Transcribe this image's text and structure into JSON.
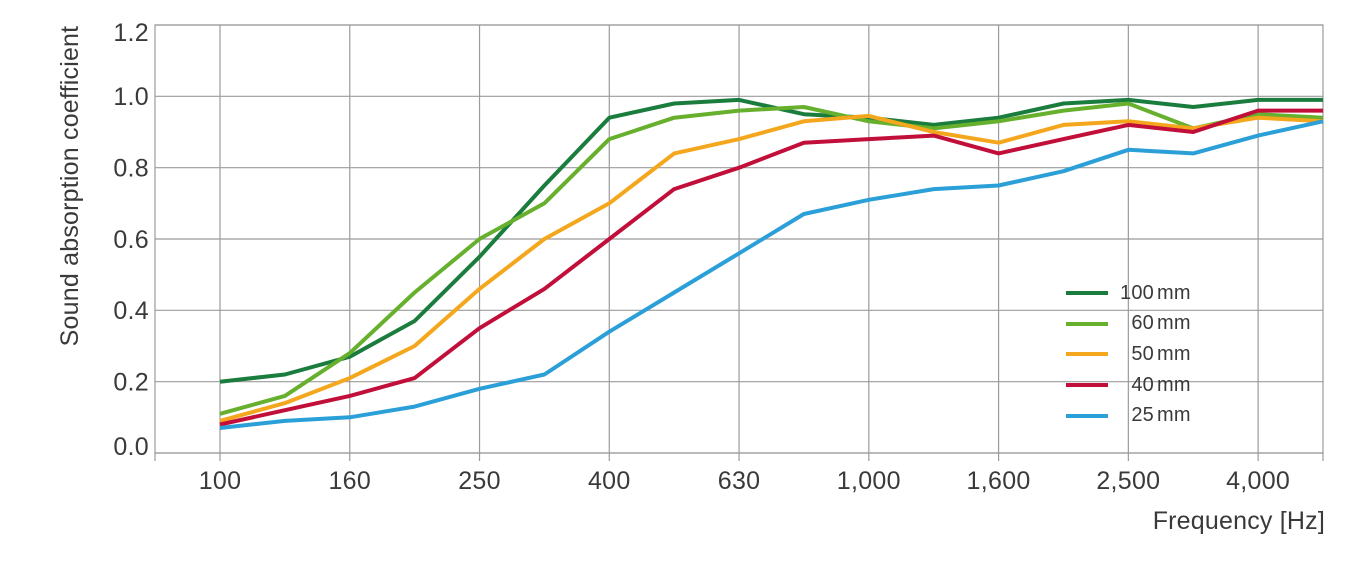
{
  "page": {
    "background": "#ffffff"
  },
  "style": {
    "grid_color": "#9b9b9b",
    "text_color": "#3a3a3a",
    "line_width": 4,
    "grid_width": 1.2
  },
  "chart_data": {
    "type": "line",
    "title": "",
    "xlabel": "Frequency [Hz]",
    "ylabel": "Sound absorption coefficient",
    "x_scale": "logarithmic, 1/3-octave bands",
    "grid": true,
    "legend_position": "inside-right",
    "ylim": [
      0,
      1.2
    ],
    "y_ticks": [
      "0.0",
      "0.2",
      "0.4",
      "0.6",
      "0.8",
      "1.0",
      "1.2"
    ],
    "frequencies": [
      100,
      125,
      160,
      200,
      250,
      315,
      400,
      500,
      630,
      800,
      1000,
      1250,
      1600,
      2000,
      2500,
      3150,
      4000,
      5000
    ],
    "x_ticks": [
      {
        "label": "100",
        "index": 0
      },
      {
        "label": "160",
        "index": 2
      },
      {
        "label": "250",
        "index": 4
      },
      {
        "label": "400",
        "index": 6
      },
      {
        "label": "630",
        "index": 8
      },
      {
        "label": "1,000",
        "index": 10
      },
      {
        "label": "1,600",
        "index": 12
      },
      {
        "label": "2,500",
        "index": 14
      },
      {
        "label": "4,000",
        "index": 16
      }
    ],
    "series": [
      {
        "name": "100 mm",
        "thickness": "100",
        "unit": "mm",
        "color": "#1a7c3d",
        "values": [
          0.2,
          0.22,
          0.27,
          0.37,
          0.55,
          0.75,
          0.94,
          0.98,
          0.99,
          0.95,
          0.94,
          0.92,
          0.94,
          0.98,
          0.99,
          0.97,
          0.99,
          0.99
        ]
      },
      {
        "name": "60 mm",
        "thickness": "60",
        "unit": "mm",
        "color": "#66b02e",
        "values": [
          0.11,
          0.16,
          0.28,
          0.45,
          0.6,
          0.7,
          0.88,
          0.94,
          0.96,
          0.97,
          0.93,
          0.91,
          0.93,
          0.96,
          0.98,
          0.91,
          0.95,
          0.94
        ]
      },
      {
        "name": "50 mm",
        "thickness": "50",
        "unit": "mm",
        "color": "#f4a71c",
        "values": [
          0.09,
          0.14,
          0.21,
          0.3,
          0.46,
          0.6,
          0.7,
          0.84,
          0.88,
          0.93,
          0.945,
          0.9,
          0.87,
          0.92,
          0.93,
          0.91,
          0.94,
          0.93
        ]
      },
      {
        "name": "40 mm",
        "thickness": "40",
        "unit": "mm",
        "color": "#c10f3a",
        "values": [
          0.08,
          0.12,
          0.16,
          0.21,
          0.35,
          0.46,
          0.6,
          0.74,
          0.8,
          0.87,
          0.88,
          0.89,
          0.84,
          0.88,
          0.92,
          0.9,
          0.96,
          0.96
        ]
      },
      {
        "name": "25 mm",
        "thickness": "25",
        "unit": "mm",
        "color": "#2b9fd7",
        "values": [
          0.07,
          0.09,
          0.1,
          0.13,
          0.18,
          0.22,
          0.34,
          0.45,
          0.56,
          0.67,
          0.71,
          0.74,
          0.75,
          0.79,
          0.85,
          0.84,
          0.89,
          0.93
        ]
      }
    ]
  }
}
